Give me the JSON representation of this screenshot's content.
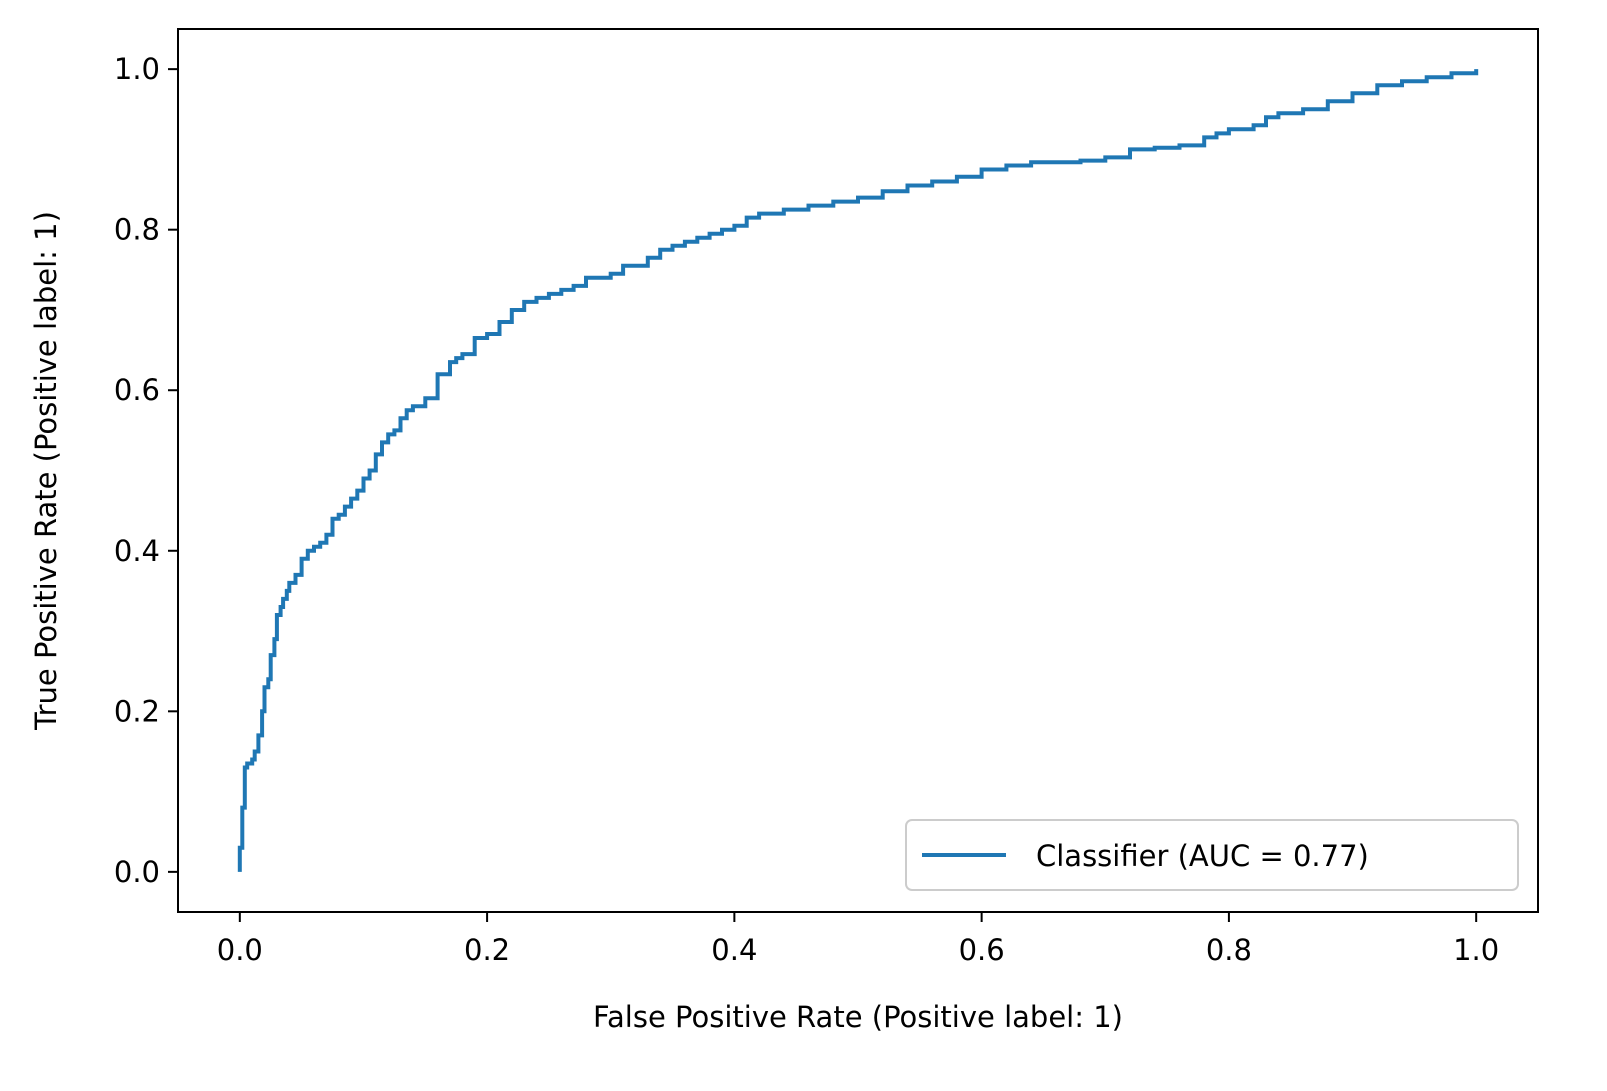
{
  "chart_data": {
    "type": "line",
    "title": "",
    "xlabel": "False Positive Rate (Positive label: 1)",
    "ylabel": "True Positive Rate (Positive label: 1)",
    "xlim": [
      -0.05,
      1.05
    ],
    "ylim": [
      -0.05,
      1.05
    ],
    "xticks": [
      0.0,
      0.2,
      0.4,
      0.6,
      0.8,
      1.0
    ],
    "xtick_labels": [
      "0.0",
      "0.2",
      "0.4",
      "0.6",
      "0.8",
      "1.0"
    ],
    "yticks": [
      0.0,
      0.2,
      0.4,
      0.6,
      0.8,
      1.0
    ],
    "ytick_labels": [
      "0.0",
      "0.2",
      "0.4",
      "0.6",
      "0.8",
      "1.0"
    ],
    "grid": false,
    "legend": {
      "placement": "lower-right"
    },
    "series": [
      {
        "name": "Classifier (AUC = 0.77)",
        "color": "#1f77b4",
        "x": [
          0.0,
          0.0,
          0.002,
          0.002,
          0.004,
          0.004,
          0.006,
          0.006,
          0.01,
          0.012,
          0.015,
          0.018,
          0.02,
          0.023,
          0.025,
          0.028,
          0.03,
          0.033,
          0.035,
          0.038,
          0.04,
          0.045,
          0.05,
          0.055,
          0.06,
          0.065,
          0.07,
          0.075,
          0.08,
          0.085,
          0.09,
          0.095,
          0.1,
          0.105,
          0.11,
          0.115,
          0.12,
          0.125,
          0.13,
          0.135,
          0.14,
          0.15,
          0.16,
          0.17,
          0.175,
          0.18,
          0.19,
          0.2,
          0.21,
          0.22,
          0.23,
          0.24,
          0.25,
          0.26,
          0.27,
          0.28,
          0.3,
          0.31,
          0.33,
          0.34,
          0.35,
          0.36,
          0.37,
          0.38,
          0.39,
          0.4,
          0.41,
          0.42,
          0.44,
          0.46,
          0.48,
          0.5,
          0.52,
          0.54,
          0.56,
          0.58,
          0.6,
          0.62,
          0.64,
          0.66,
          0.68,
          0.7,
          0.72,
          0.74,
          0.76,
          0.78,
          0.79,
          0.8,
          0.82,
          0.83,
          0.84,
          0.86,
          0.88,
          0.9,
          0.92,
          0.94,
          0.96,
          0.98,
          1.0
        ],
        "y": [
          0.0,
          0.03,
          0.05,
          0.08,
          0.1,
          0.13,
          0.135,
          0.135,
          0.14,
          0.15,
          0.17,
          0.2,
          0.23,
          0.24,
          0.27,
          0.29,
          0.32,
          0.33,
          0.34,
          0.35,
          0.36,
          0.37,
          0.39,
          0.4,
          0.405,
          0.41,
          0.42,
          0.44,
          0.445,
          0.455,
          0.465,
          0.475,
          0.49,
          0.5,
          0.52,
          0.535,
          0.545,
          0.55,
          0.565,
          0.575,
          0.58,
          0.59,
          0.62,
          0.635,
          0.64,
          0.645,
          0.665,
          0.67,
          0.685,
          0.7,
          0.71,
          0.715,
          0.72,
          0.725,
          0.73,
          0.74,
          0.745,
          0.755,
          0.765,
          0.775,
          0.78,
          0.785,
          0.79,
          0.795,
          0.8,
          0.805,
          0.815,
          0.82,
          0.825,
          0.83,
          0.835,
          0.84,
          0.848,
          0.855,
          0.86,
          0.866,
          0.875,
          0.88,
          0.884,
          0.884,
          0.886,
          0.89,
          0.9,
          0.902,
          0.905,
          0.915,
          0.92,
          0.925,
          0.93,
          0.94,
          0.945,
          0.95,
          0.96,
          0.97,
          0.98,
          0.985,
          0.99,
          0.995,
          1.0
        ]
      }
    ]
  }
}
